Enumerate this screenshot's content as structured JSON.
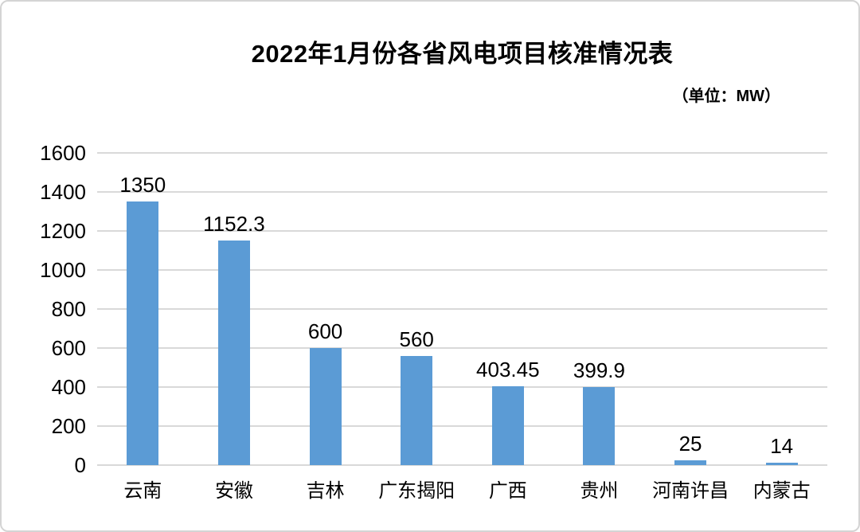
{
  "page": {
    "title": "2022年1月份各省风电项目核准情况表",
    "unit_label": "（单位：MW）"
  },
  "chart_data": {
    "type": "bar",
    "title": "2022年1月份各省风电项目核准情况表",
    "unit": "（单位：MW）",
    "categories": [
      "云南",
      "安徽",
      "吉林",
      "广东揭阳",
      "广西",
      "贵州",
      "河南许昌",
      "内蒙古"
    ],
    "values": [
      1350,
      1152.3,
      600,
      560,
      403.45,
      399.9,
      25,
      14
    ],
    "data_labels": [
      "1350",
      "1152.3",
      "600",
      "560",
      "403.45",
      "399.9",
      "25",
      "14"
    ],
    "xlabel": "",
    "ylabel": "",
    "ylim": [
      0,
      1600
    ],
    "yticks": [
      0,
      200,
      400,
      600,
      800,
      1000,
      1200,
      1400,
      1600
    ],
    "grid": true,
    "legend_position": "none",
    "bar_color": "#5B9BD5",
    "gridline_color": "#D9D9D9",
    "text_color": "#000000"
  }
}
